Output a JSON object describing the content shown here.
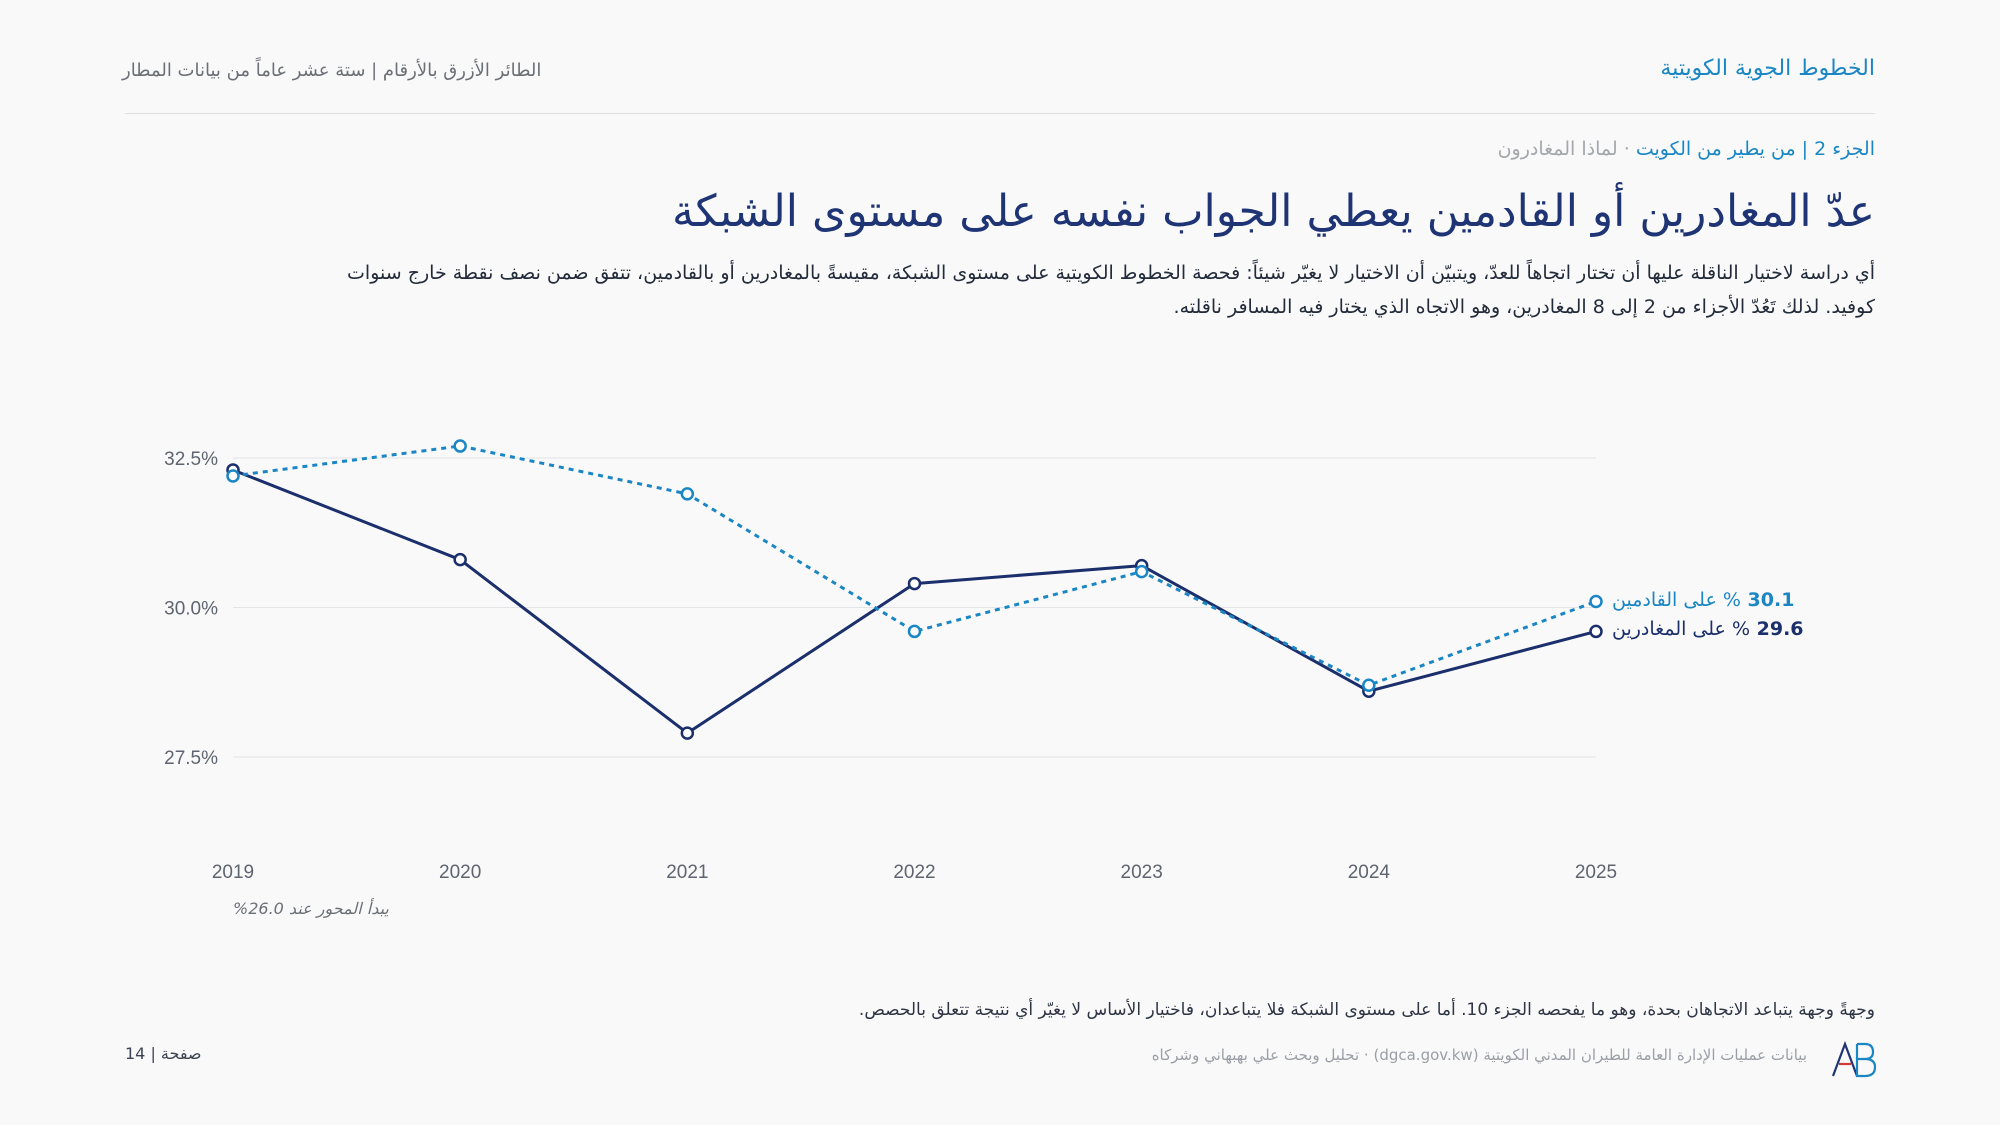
{
  "header": {
    "brand": "الخطوط الجوية الكويتية",
    "series_title": "الطائر الأزرق بالأرقام | ستة عشر عاماً من بيانات المطار"
  },
  "kicker": {
    "part": "الجزء 2 | من يطير من الكويت",
    "separator": " · ",
    "topic": "لماذا المغادرون"
  },
  "headline": "عدّ المغادرين أو القادمين يعطي الجواب نفسه على مستوى الشبكة",
  "deck": "أي دراسة لاختيار الناقلة عليها أن تختار اتجاهاً للعدّ، ويتبيّن أن الاختيار لا يغيّر شيئاً: فحصة الخطوط الكويتية على مستوى الشبكة، مقيسةً بالمغادرين أو بالقادمين، تتفق ضمن نصف نقطة خارج سنوات كوفيد. لذلك تَعُدّ الأجزاء من 2 إلى 8 المغادرين، وهو الاتجاه الذي يختار فيه المسافر ناقلته.",
  "chart_data": {
    "type": "line",
    "x": [
      "2019",
      "2020",
      "2021",
      "2022",
      "2023",
      "2024",
      "2025"
    ],
    "y_ticks": [
      "27.5%",
      "30.0%",
      "32.5%"
    ],
    "ylim": [
      26.0,
      33.5
    ],
    "axis_note": "يبدأ المحور عند 26.0%",
    "series": [
      {
        "name": "على المغادرين",
        "end_label_value": "29.6",
        "end_label_unit": "% على المغادرين",
        "style": "solid",
        "color": "#1a2f6b",
        "values": [
          32.3,
          30.8,
          27.9,
          30.4,
          30.7,
          28.6,
          29.6
        ]
      },
      {
        "name": "على القادمين",
        "end_label_value": "30.1",
        "end_label_unit": "% على القادمين",
        "style": "dotted",
        "color": "#1a86c4",
        "values": [
          32.2,
          32.7,
          31.9,
          29.6,
          30.6,
          28.7,
          30.1
        ]
      }
    ],
    "grid": true
  },
  "footnote": "وجهةً وجهة يتباعد الاتجاهان بحدة، وهو ما يفحصه الجزء 10. أما على مستوى الشبكة فلا يتباعدان، فاختيار الأساس لا يغيّر أي نتيجة تتعلق بالحصص.",
  "footer": {
    "page": "صفحة | 14",
    "source": "بيانات عمليات الإدارة العامة للطيران المدني الكويتية (dgca.gov.kw) · تحليل وبحث علي بهبهاني وشركاه"
  },
  "logo": {
    "icon": "ab-monogram-icon",
    "colors": [
      "#1e3474",
      "#1a86c4",
      "#d23a3a"
    ]
  }
}
